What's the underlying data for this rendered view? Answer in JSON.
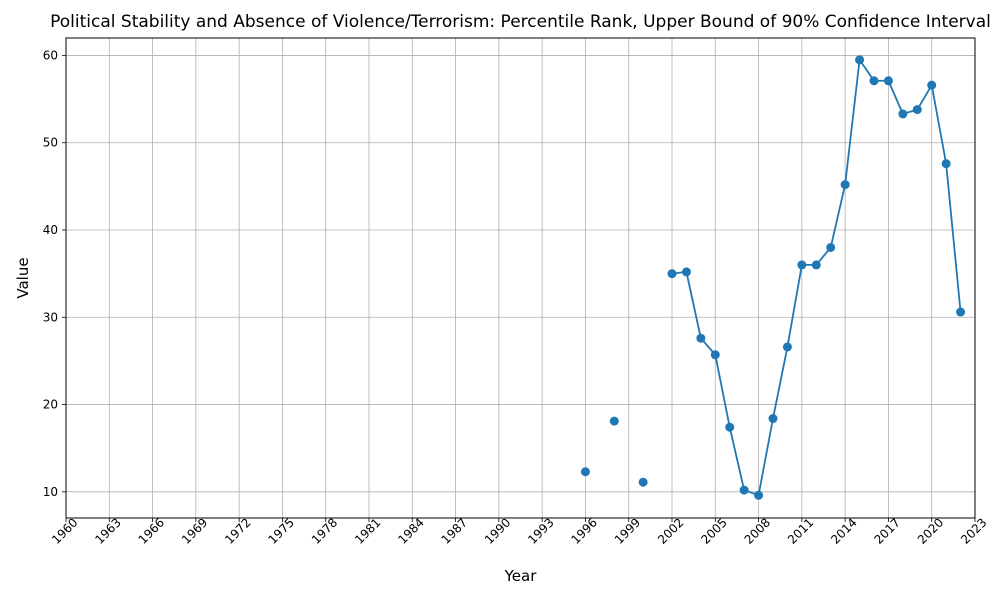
{
  "chart_data": {
    "type": "line",
    "title": "Political Stability and Absence of Violence/Terrorism: Percentile Rank, Upper Bound of 90% Confidence Interval",
    "xlabel": "Year",
    "ylabel": "Value",
    "xlim": [
      1960,
      2023
    ],
    "ylim": [
      7,
      62
    ],
    "grid": true,
    "x_ticks": [
      1960,
      1963,
      1966,
      1969,
      1972,
      1975,
      1978,
      1981,
      1984,
      1987,
      1990,
      1993,
      1996,
      1999,
      2002,
      2005,
      2008,
      2011,
      2014,
      2017,
      2020,
      2023
    ],
    "x_tick_labels": [
      "1960",
      "1963",
      "1966",
      "1969",
      "1972",
      "1975",
      "1978",
      "1981",
      "1984",
      "1987",
      "1990",
      "1993",
      "1996",
      "1999",
      "2002",
      "2005",
      "2008",
      "2011",
      "2014",
      "2017",
      "2020",
      "2023"
    ],
    "y_ticks": [
      10,
      20,
      30,
      40,
      50,
      60
    ],
    "y_tick_labels": [
      "10",
      "20",
      "30",
      "40",
      "50",
      "60"
    ],
    "series_color": "#1f77b4",
    "series": [
      {
        "points": [
          [
            1996,
            12.3
          ],
          [
            1997,
            null
          ],
          [
            1998,
            18.1
          ],
          [
            1999,
            null
          ],
          [
            2000,
            11.1
          ],
          [
            2001,
            null
          ],
          [
            2002,
            35.0
          ],
          [
            2003,
            35.2
          ],
          [
            2004,
            27.6
          ],
          [
            2005,
            25.7
          ],
          [
            2006,
            17.4
          ],
          [
            2007,
            10.2
          ],
          [
            2008,
            9.6
          ],
          [
            2009,
            18.4
          ],
          [
            2010,
            26.6
          ],
          [
            2011,
            36.0
          ],
          [
            2012,
            36.0
          ],
          [
            2013,
            38.0
          ],
          [
            2014,
            45.2
          ],
          [
            2015,
            59.5
          ],
          [
            2016,
            57.1
          ],
          [
            2017,
            57.1
          ],
          [
            2018,
            53.3
          ],
          [
            2019,
            53.8
          ],
          [
            2020,
            56.6
          ],
          [
            2021,
            47.6
          ],
          [
            2022,
            30.6
          ]
        ]
      }
    ]
  }
}
